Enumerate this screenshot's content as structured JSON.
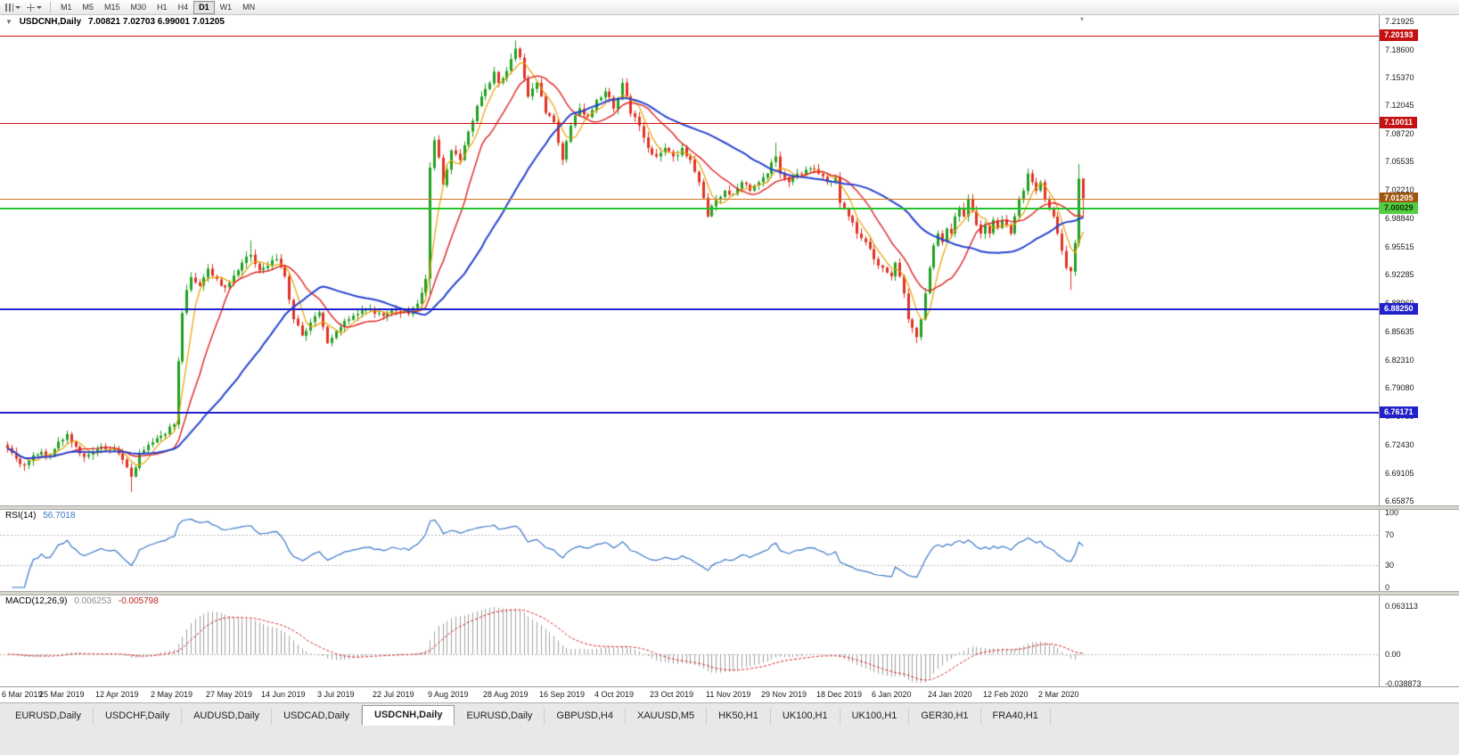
{
  "toolbar": {
    "icons": [
      "bar-chart",
      "crosshair"
    ],
    "timeframes": [
      "M1",
      "M5",
      "M15",
      "M30",
      "H1",
      "H4",
      "D1",
      "W1",
      "MN"
    ],
    "active_timeframe": "D1"
  },
  "chart": {
    "collapse_arrow": "▼",
    "shift_marker": "▾",
    "title": "USDCNH,Daily",
    "ohlc_text": "7.00821 7.02703 6.99001 7.01205",
    "price_ticks": [
      "7.21925",
      "7.18600",
      "7.15370",
      "7.12045",
      "7.08720",
      "7.05535",
      "7.02210",
      "6.98840",
      "6.95515",
      "6.92285",
      "6.88960",
      "6.85635",
      "6.82310",
      "6.79080",
      "6.75755",
      "6.72430",
      "6.69105",
      "6.65875"
    ],
    "levels": [
      {
        "price": 7.20193,
        "label": "7.20193",
        "line_color": "#cc1111",
        "line_width": 1,
        "badge_bg": "#c41111",
        "badge_fg": "#ffffff"
      },
      {
        "price": 7.10011,
        "label": "7.10011",
        "line_color": "#cc1111",
        "line_width": 1,
        "badge_bg": "#c41111",
        "badge_fg": "#ffffff"
      },
      {
        "price": 7.01205,
        "label": "7.01205",
        "line_color": "#c87820",
        "line_width": 1,
        "badge_bg": "#a0560e",
        "badge_fg": "#ffffff"
      },
      {
        "price": 7.00029,
        "label": "7.00029",
        "line_color": "#22c32a",
        "line_width": 2,
        "badge_bg": "#52ce42",
        "badge_fg": "#103300"
      },
      {
        "price": 6.8825,
        "label": "6.88250",
        "line_color": "#2222cc",
        "line_width": 2,
        "badge_bg": "#2222cc",
        "badge_fg": "#ffffff"
      },
      {
        "price": 6.76171,
        "label": "6.76171",
        "line_color": "#2222cc",
        "line_width": 2,
        "badge_bg": "#2222cc",
        "badge_fg": "#ffffff"
      }
    ],
    "colors": {
      "candle_up": "#21a121",
      "candle_down": "#e03224",
      "rsi_line": "#3a77c8",
      "macd_hist": "#a0a0a0",
      "macd_signal": "#d42222"
    }
  },
  "rsi_panel": {
    "name": "RSI(14)",
    "value": "56.7018",
    "axis_labels": [
      {
        "text": "100",
        "value": 100
      },
      {
        "text": "70",
        "value": 70
      },
      {
        "text": "30",
        "value": 30
      },
      {
        "text": "0",
        "value": 0
      }
    ],
    "levels_dotted": [
      70,
      30
    ]
  },
  "macd_panel": {
    "name": "MACD(12,26,9)",
    "main_value": "0.006253",
    "signal_value": "-0.005798",
    "axis_labels": [
      {
        "text": "0.063113",
        "value": 0.063113
      },
      {
        "text": "0.00",
        "value": 0
      },
      {
        "text": "-0.038873",
        "value": -0.038873
      }
    ]
  },
  "time_axis": {
    "labels": [
      "6 Mar 2019",
      "25 Mar 2019",
      "12 Apr 2019",
      "2 May 2019",
      "27 May 2019",
      "14 Jun 2019",
      "3 Jul 2019",
      "22 Jul 2019",
      "9 Aug 2019",
      "28 Aug 2019",
      "16 Sep 2019",
      "4 Oct 2019",
      "23 Oct 2019",
      "11 Nov 2019",
      "29 Nov 2019",
      "18 Dec 2019",
      "6 Jan 2020",
      "24 Jan 2020",
      "12 Feb 2020",
      "2 Mar 2020"
    ],
    "bars_per_label": 13
  },
  "tabs": {
    "items": [
      "EURUSD,Daily",
      "USDCHF,Daily",
      "AUDUSD,Daily",
      "USDCAD,Daily",
      "USDCNH,Daily",
      "EURUSD,Daily",
      "GBPUSD,H4",
      "XAUUSD,M5",
      "HK50,H1",
      "UK100,H1",
      "UK100,H1",
      "GER30,H1",
      "FRA40,H1"
    ],
    "active_index": 4
  },
  "chart_data": {
    "type": "candlestick",
    "symbol": "USDCNH",
    "timeframe": "Daily",
    "bar_count": 253,
    "last_ohlc": {
      "open": 7.00821,
      "high": 7.02703,
      "low": 6.99001,
      "close": 7.01205
    },
    "y_axis": {
      "min": 6.6534,
      "max": 7.2261
    },
    "close_anchors": [
      [
        0,
        6.72
      ],
      [
        2,
        6.708
      ],
      [
        4,
        6.7
      ],
      [
        6,
        6.712
      ],
      [
        8,
        6.716
      ],
      [
        10,
        6.712
      ],
      [
        12,
        6.728
      ],
      [
        14,
        6.737
      ],
      [
        16,
        6.722
      ],
      [
        18,
        6.71
      ],
      [
        20,
        6.716
      ],
      [
        22,
        6.722
      ],
      [
        24,
        6.718
      ],
      [
        26,
        6.714
      ],
      [
        28,
        6.698
      ],
      [
        29,
        6.687
      ],
      [
        31,
        6.714
      ],
      [
        33,
        6.724
      ],
      [
        35,
        6.732
      ],
      [
        37,
        6.737
      ],
      [
        39,
        6.748
      ],
      [
        40,
        6.822
      ],
      [
        41,
        6.878
      ],
      [
        42,
        6.905
      ],
      [
        43,
        6.92
      ],
      [
        45,
        6.91
      ],
      [
        47,
        6.93
      ],
      [
        49,
        6.918
      ],
      [
        51,
        6.908
      ],
      [
        53,
        6.922
      ],
      [
        55,
        6.937
      ],
      [
        57,
        6.946
      ],
      [
        59,
        6.928
      ],
      [
        61,
        6.933
      ],
      [
        63,
        6.941
      ],
      [
        65,
        6.921
      ],
      [
        67,
        6.871
      ],
      [
        69,
        6.852
      ],
      [
        71,
        6.867
      ],
      [
        73,
        6.879
      ],
      [
        75,
        6.843
      ],
      [
        77,
        6.857
      ],
      [
        79,
        6.869
      ],
      [
        82,
        6.877
      ],
      [
        85,
        6.883
      ],
      [
        88,
        6.875
      ],
      [
        91,
        6.881
      ],
      [
        94,
        6.877
      ],
      [
        96,
        6.889
      ],
      [
        98,
        6.918
      ],
      [
        99,
        7.048
      ],
      [
        100,
        7.08
      ],
      [
        101,
        7.06
      ],
      [
        102,
        7.028
      ],
      [
        103,
        7.046
      ],
      [
        104,
        7.068
      ],
      [
        106,
        7.057
      ],
      [
        108,
        7.09
      ],
      [
        110,
        7.12
      ],
      [
        112,
        7.14
      ],
      [
        114,
        7.16
      ],
      [
        115,
        7.147
      ],
      [
        117,
        7.161
      ],
      [
        119,
        7.187
      ],
      [
        120,
        7.177
      ],
      [
        121,
        7.152
      ],
      [
        122,
        7.131
      ],
      [
        124,
        7.147
      ],
      [
        126,
        7.112
      ],
      [
        128,
        7.101
      ],
      [
        129,
        7.077
      ],
      [
        130,
        7.057
      ],
      [
        132,
        7.097
      ],
      [
        134,
        7.117
      ],
      [
        136,
        7.107
      ],
      [
        138,
        7.127
      ],
      [
        140,
        7.137
      ],
      [
        142,
        7.117
      ],
      [
        144,
        7.147
      ],
      [
        146,
        7.111
      ],
      [
        148,
        7.097
      ],
      [
        150,
        7.071
      ],
      [
        152,
        7.061
      ],
      [
        154,
        7.071
      ],
      [
        156,
        7.061
      ],
      [
        158,
        7.071
      ],
      [
        160,
        7.057
      ],
      [
        162,
        7.031
      ],
      [
        164,
        6.991
      ],
      [
        166,
        7.011
      ],
      [
        168,
        7.021
      ],
      [
        170,
        7.017
      ],
      [
        172,
        7.031
      ],
      [
        174,
        7.021
      ],
      [
        176,
        7.031
      ],
      [
        178,
        7.041
      ],
      [
        180,
        7.061
      ],
      [
        181,
        7.041
      ],
      [
        183,
        7.031
      ],
      [
        185,
        7.041
      ],
      [
        188,
        7.047
      ],
      [
        190,
        7.041
      ],
      [
        192,
        7.031
      ],
      [
        194,
        7.037
      ],
      [
        195,
        7.007
      ],
      [
        197,
        6.991
      ],
      [
        199,
        6.971
      ],
      [
        201,
        6.961
      ],
      [
        203,
        6.941
      ],
      [
        205,
        6.931
      ],
      [
        207,
        6.921
      ],
      [
        208,
        6.937
      ],
      [
        209,
        6.921
      ],
      [
        210,
        6.901
      ],
      [
        211,
        6.871
      ],
      [
        212,
        6.861
      ],
      [
        213,
        6.85
      ],
      [
        214,
        6.871
      ],
      [
        215,
        6.901
      ],
      [
        216,
        6.931
      ],
      [
        217,
        6.957
      ],
      [
        218,
        6.971
      ],
      [
        219,
        6.961
      ],
      [
        220,
        6.977
      ],
      [
        221,
        6.971
      ],
      [
        222,
        6.991
      ],
      [
        223,
        7.001
      ],
      [
        224,
        6.991
      ],
      [
        225,
        7.011
      ],
      [
        226,
        6.997
      ],
      [
        227,
        6.981
      ],
      [
        228,
        6.971
      ],
      [
        229,
        6.981
      ],
      [
        230,
        6.971
      ],
      [
        231,
        6.987
      ],
      [
        232,
        6.977
      ],
      [
        233,
        6.987
      ],
      [
        234,
        6.981
      ],
      [
        235,
        6.971
      ],
      [
        236,
        6.991
      ],
      [
        237,
        7.011
      ],
      [
        238,
        7.021
      ],
      [
        239,
        7.041
      ],
      [
        240,
        7.031
      ],
      [
        241,
        7.021
      ],
      [
        242,
        7.031
      ],
      [
        243,
        7.011
      ],
      [
        244,
        7.001
      ],
      [
        245,
        6.991
      ],
      [
        246,
        6.971
      ],
      [
        247,
        6.951
      ],
      [
        248,
        6.931
      ],
      [
        249,
        6.927
      ],
      [
        250,
        6.96
      ],
      [
        251,
        7.035
      ],
      [
        252,
        7.012
      ]
    ],
    "wick_overrides": {
      "29": {
        "low": 6.669
      },
      "57": {
        "high": 6.963
      },
      "99": {
        "low": 6.9
      },
      "119": {
        "high": 7.1965
      },
      "180": {
        "high": 7.077
      },
      "213": {
        "low": 6.843
      },
      "249": {
        "low": 6.905
      },
      "251": {
        "high": 7.052
      },
      "252": {
        "high": 7.02703,
        "low": 6.99001
      }
    },
    "indicators": {
      "ma": [
        {
          "period": 5,
          "color": "#e8a000",
          "width": 1.2
        },
        {
          "period": 13,
          "color": "#e02020",
          "width": 1.4
        },
        {
          "period": 34,
          "color": "#2743d0",
          "width": 2
        }
      ],
      "rsi": {
        "period": 14,
        "current": 56.7018
      },
      "macd": {
        "fast": 12,
        "slow": 26,
        "signal": 9,
        "current_main": 0.006253,
        "current_signal": -0.005798
      }
    }
  }
}
